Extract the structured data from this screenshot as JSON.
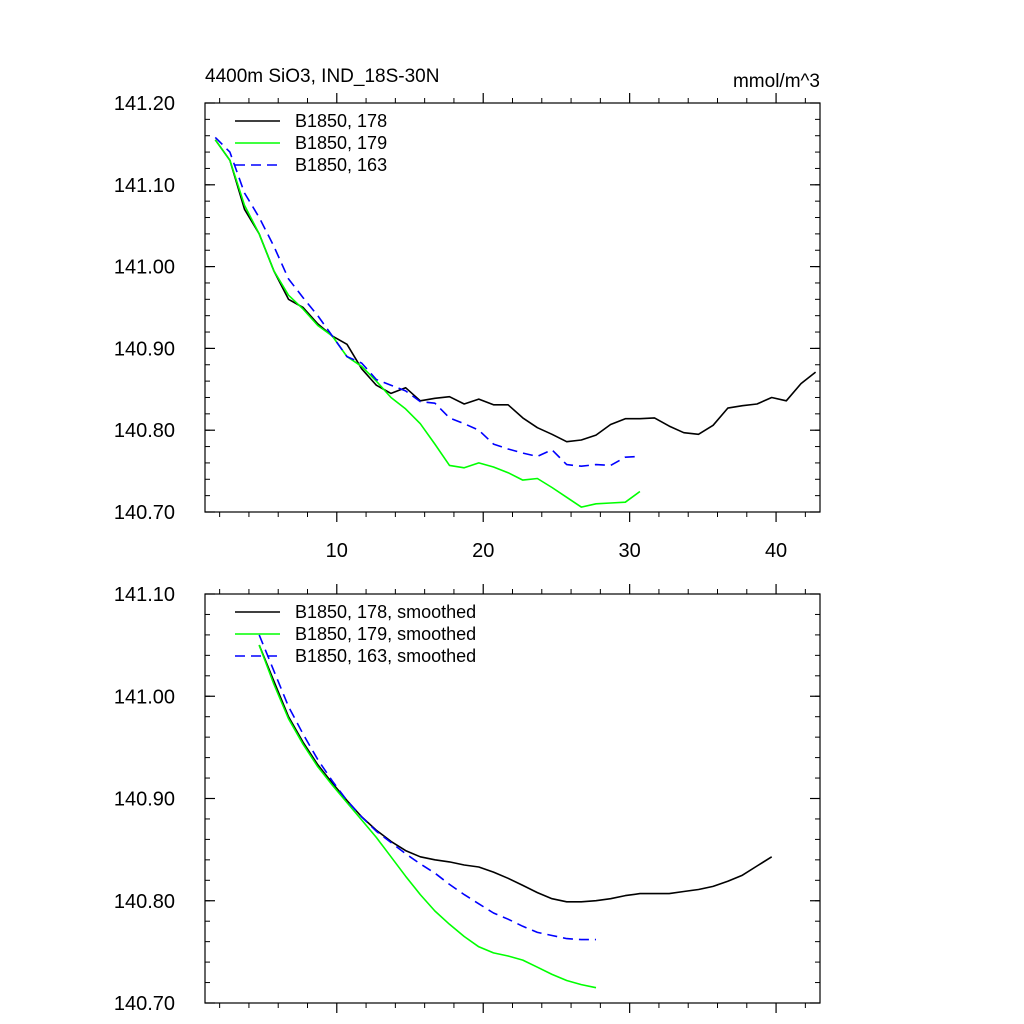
{
  "chart_data": [
    {
      "type": "line",
      "title": "4400m SiO3, IND_18S-30N",
      "units": "mmol/m^3",
      "xlim": [
        1,
        43
      ],
      "ylim": [
        140.7,
        141.2
      ],
      "xticks": [
        10,
        20,
        30,
        40
      ],
      "xtick_labels": [
        "10",
        "20",
        "30",
        "40"
      ],
      "yticks": [
        140.7,
        140.8,
        140.9,
        141.0,
        141.1,
        141.2
      ],
      "ytick_labels": [
        "140.70",
        "140.80",
        "140.90",
        "141.00",
        "141.10",
        "141.20"
      ],
      "grid": false,
      "legend_position": "top-left",
      "series": [
        {
          "name": "B1850, 178",
          "color": "#000000",
          "dash": "solid",
          "x": [
            1.7,
            2.7,
            3.7,
            4.7,
            5.7,
            6.7,
            7.7,
            8.7,
            9.7,
            10.7,
            11.7,
            12.7,
            13.7,
            14.7,
            15.7,
            16.7,
            17.7,
            18.7,
            19.7,
            20.7,
            21.7,
            22.7,
            23.7,
            24.7,
            25.7,
            26.7,
            27.7,
            28.7,
            29.7,
            30.7,
            31.7,
            32.7,
            33.7,
            34.7,
            35.7,
            36.7,
            37.7,
            38.7,
            39.7,
            40.7,
            41.7,
            42.7
          ],
          "values": [
            141.155,
            141.13,
            141.07,
            141.04,
            140.995,
            140.96,
            140.95,
            140.93,
            140.915,
            140.905,
            140.875,
            140.855,
            140.845,
            140.852,
            140.836,
            140.839,
            140.841,
            140.832,
            140.838,
            140.831,
            140.831,
            140.815,
            140.803,
            140.795,
            140.786,
            140.788,
            140.794,
            140.807,
            140.814,
            140.814,
            140.815,
            140.805,
            140.797,
            140.795,
            140.806,
            140.827,
            140.83,
            140.832,
            140.84,
            140.836,
            140.857,
            140.871
          ]
        },
        {
          "name": "B1850, 179",
          "color": "#00ff00",
          "dash": "solid",
          "x": [
            1.7,
            2.7,
            3.7,
            4.7,
            5.7,
            6.7,
            7.7,
            8.7,
            9.7,
            10.7,
            11.7,
            12.7,
            13.7,
            14.7,
            15.7,
            16.7,
            17.7,
            18.7,
            19.7,
            20.7,
            21.7,
            22.7,
            23.7,
            24.7,
            25.7,
            26.7,
            27.7,
            28.7,
            29.7,
            30.7
          ],
          "values": [
            141.155,
            141.13,
            141.075,
            141.04,
            140.995,
            140.965,
            140.948,
            140.928,
            140.915,
            140.89,
            140.878,
            140.86,
            140.84,
            140.826,
            140.808,
            140.783,
            140.757,
            140.754,
            140.76,
            140.755,
            140.748,
            140.739,
            140.741,
            140.73,
            140.718,
            140.706,
            140.71,
            140.711,
            140.712,
            140.725
          ]
        },
        {
          "name": "B1850, 163",
          "color": "#0000ff",
          "dash": "dashed",
          "x": [
            1.7,
            2.7,
            3.7,
            4.7,
            5.7,
            6.7,
            7.7,
            8.7,
            9.7,
            10.7,
            11.7,
            12.7,
            13.7,
            14.7,
            15.7,
            16.7,
            17.7,
            18.7,
            19.7,
            20.7,
            21.7,
            22.7,
            23.7,
            24.7,
            25.7,
            26.7,
            27.7,
            28.7,
            29.7,
            30.7
          ],
          "values": [
            141.158,
            141.14,
            141.09,
            141.06,
            141.025,
            140.985,
            140.962,
            140.94,
            140.915,
            140.89,
            140.882,
            140.862,
            140.855,
            140.848,
            140.835,
            140.833,
            140.815,
            140.808,
            140.8,
            140.783,
            140.777,
            140.772,
            140.768,
            140.776,
            140.758,
            140.756,
            140.758,
            140.757,
            140.767,
            140.768
          ]
        }
      ]
    },
    {
      "type": "line",
      "xlim": [
        1,
        43
      ],
      "ylim": [
        140.7,
        141.1
      ],
      "xticks": [
        10,
        20,
        30,
        40
      ],
      "yticks": [
        140.7,
        140.8,
        140.9,
        141.0,
        141.1
      ],
      "ytick_labels": [
        "140.70",
        "140.80",
        "140.90",
        "141.00",
        "141.10"
      ],
      "grid": false,
      "legend_position": "top-left",
      "series": [
        {
          "name": "B1850, 178, smoothed",
          "color": "#000000",
          "dash": "solid",
          "x": [
            4.7,
            5.7,
            6.7,
            7.7,
            8.7,
            9.7,
            10.7,
            11.7,
            12.7,
            13.7,
            14.7,
            15.7,
            16.7,
            17.7,
            18.7,
            19.7,
            20.7,
            21.7,
            22.7,
            23.7,
            24.7,
            25.7,
            26.7,
            27.7,
            28.7,
            29.7,
            30.7,
            31.7,
            32.7,
            33.7,
            34.7,
            35.7,
            36.7,
            37.7,
            38.7,
            39.7
          ],
          "values": [
            141.05,
            141.015,
            140.98,
            140.955,
            140.933,
            140.915,
            140.898,
            140.882,
            140.869,
            140.858,
            140.849,
            140.843,
            140.84,
            140.838,
            140.835,
            140.833,
            140.828,
            140.822,
            140.815,
            140.808,
            140.802,
            140.799,
            140.799,
            140.8,
            140.802,
            140.805,
            140.807,
            140.807,
            140.807,
            140.809,
            140.811,
            140.814,
            140.819,
            140.825,
            140.834,
            140.843
          ]
        },
        {
          "name": "B1850, 179, smoothed",
          "color": "#00ff00",
          "dash": "solid",
          "x": [
            4.7,
            5.7,
            6.7,
            7.7,
            8.7,
            9.7,
            10.7,
            11.7,
            12.7,
            13.7,
            14.7,
            15.7,
            16.7,
            17.7,
            18.7,
            19.7,
            20.7,
            21.7,
            22.7,
            23.7,
            24.7,
            25.7,
            26.7,
            27.7
          ],
          "values": [
            141.05,
            141.012,
            140.978,
            140.953,
            140.931,
            140.913,
            140.896,
            140.879,
            140.862,
            140.843,
            140.824,
            140.806,
            140.79,
            140.777,
            140.765,
            140.755,
            140.749,
            140.746,
            140.742,
            140.735,
            140.728,
            140.722,
            140.718,
            140.715
          ]
        },
        {
          "name": "B1850, 163, smoothed",
          "color": "#0000ff",
          "dash": "dashed",
          "x": [
            4.7,
            5.7,
            6.7,
            7.7,
            8.7,
            9.7,
            10.7,
            11.7,
            12.7,
            13.7,
            14.7,
            15.7,
            16.7,
            17.7,
            18.7,
            19.7,
            20.7,
            21.7,
            22.7,
            23.7,
            24.7,
            25.7,
            26.7,
            27.7
          ],
          "values": [
            141.06,
            141.025,
            140.99,
            140.963,
            140.938,
            140.917,
            140.898,
            140.882,
            140.868,
            140.857,
            140.846,
            140.836,
            140.827,
            140.816,
            140.806,
            140.797,
            140.788,
            140.782,
            140.775,
            140.769,
            140.766,
            140.763,
            140.762,
            140.762
          ]
        }
      ]
    }
  ]
}
